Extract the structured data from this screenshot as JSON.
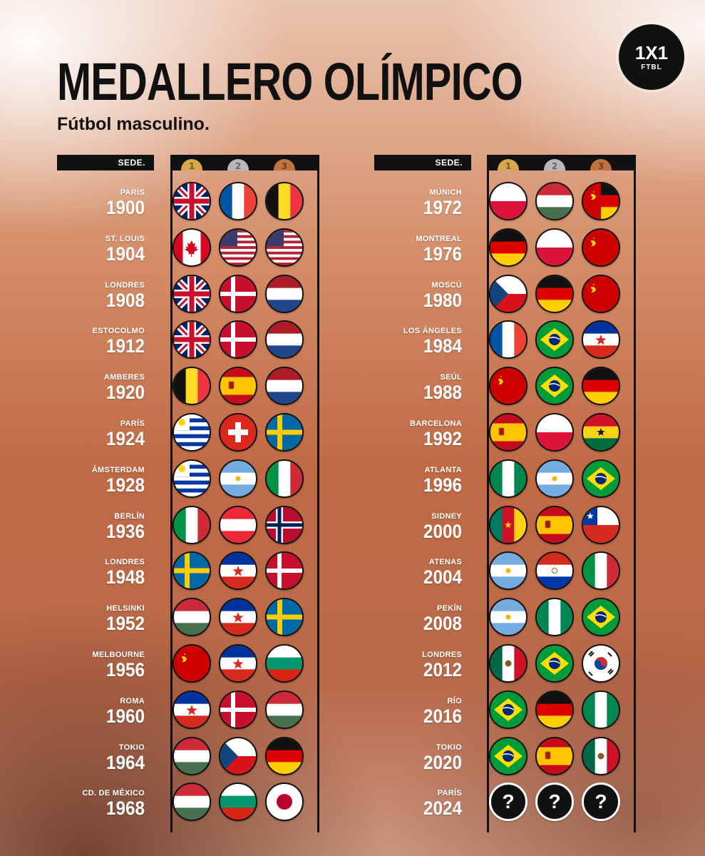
{
  "header": {
    "title": "MEDALLERO OLÍMPICO",
    "subtitle": "Fútbol masculino.",
    "logo_main": "1X1",
    "logo_sub": "FTBL"
  },
  "table": {
    "sede_label": "SEDE.",
    "medal_numbers": [
      "1",
      "2",
      "3"
    ],
    "columns": [
      {
        "rows": [
          {
            "city": "PARÍS",
            "year": "1900",
            "medals": [
              "uk",
              "france",
              "belgium"
            ]
          },
          {
            "city": "ST. LOUIS",
            "year": "1904",
            "medals": [
              "canada",
              "usa",
              "usa"
            ]
          },
          {
            "city": "LONDRES",
            "year": "1908",
            "medals": [
              "uk",
              "denmark",
              "netherlands"
            ]
          },
          {
            "city": "ESTOCOLMO",
            "year": "1912",
            "medals": [
              "uk",
              "denmark",
              "netherlands"
            ]
          },
          {
            "city": "AMBERES",
            "year": "1920",
            "medals": [
              "belgium",
              "spain",
              "netherlands"
            ]
          },
          {
            "city": "PARÍS",
            "year": "1924",
            "medals": [
              "uruguay",
              "switzerland",
              "sweden"
            ]
          },
          {
            "city": "ÁMSTERDAM",
            "year": "1928",
            "medals": [
              "uruguay",
              "argentina",
              "italy"
            ]
          },
          {
            "city": "BERLÍN",
            "year": "1936",
            "medals": [
              "italy",
              "austria",
              "norway"
            ]
          },
          {
            "city": "LONDRES",
            "year": "1948",
            "medals": [
              "sweden",
              "yugoslavia",
              "denmark"
            ]
          },
          {
            "city": "HELSINKI",
            "year": "1952",
            "medals": [
              "hungary",
              "yugoslavia",
              "sweden"
            ]
          },
          {
            "city": "MELBOURNE",
            "year": "1956",
            "medals": [
              "ussr",
              "yugoslavia",
              "bulgaria"
            ]
          },
          {
            "city": "ROMA",
            "year": "1960",
            "medals": [
              "yugoslavia",
              "denmark",
              "hungary"
            ]
          },
          {
            "city": "TOKIO",
            "year": "1964",
            "medals": [
              "hungary",
              "czechoslovakia",
              "germany"
            ]
          },
          {
            "city": "CD. DE MÉXICO",
            "year": "1968",
            "medals": [
              "hungary",
              "bulgaria",
              "japan"
            ]
          }
        ]
      },
      {
        "rows": [
          {
            "city": "MÚNICH",
            "year": "1972",
            "medals": [
              "poland",
              "hungary",
              "ussr_gdr"
            ]
          },
          {
            "city": "MONTREAL",
            "year": "1976",
            "medals": [
              "germany",
              "poland",
              "ussr"
            ]
          },
          {
            "city": "MOSCÚ",
            "year": "1980",
            "medals": [
              "czechoslovakia",
              "germany",
              "ussr"
            ]
          },
          {
            "city": "LOS ÁNGELES",
            "year": "1984",
            "medals": [
              "france",
              "brazil",
              "yugoslavia"
            ]
          },
          {
            "city": "SEÚL",
            "year": "1988",
            "medals": [
              "ussr",
              "brazil",
              "germany"
            ]
          },
          {
            "city": "BARCELONA",
            "year": "1992",
            "medals": [
              "spain",
              "poland",
              "ghana"
            ]
          },
          {
            "city": "ATLANTA",
            "year": "1996",
            "medals": [
              "nigeria",
              "argentina",
              "brazil"
            ]
          },
          {
            "city": "SIDNEY",
            "year": "2000",
            "medals": [
              "cameroon",
              "spain",
              "chile"
            ]
          },
          {
            "city": "ATENAS",
            "year": "2004",
            "medals": [
              "argentina",
              "paraguay",
              "italy"
            ]
          },
          {
            "city": "PEKÍN",
            "year": "2008",
            "medals": [
              "argentina",
              "nigeria",
              "brazil"
            ]
          },
          {
            "city": "LONDRES",
            "year": "2012",
            "medals": [
              "mexico",
              "brazil",
              "korea"
            ]
          },
          {
            "city": "RÍO",
            "year": "2016",
            "medals": [
              "brazil",
              "germany",
              "nigeria"
            ]
          },
          {
            "city": "TOKIO",
            "year": "2020",
            "medals": [
              "brazil",
              "spain",
              "mexico"
            ]
          },
          {
            "city": "PARÍS",
            "year": "2024",
            "medals": [
              "unknown",
              "unknown",
              "unknown"
            ]
          }
        ]
      }
    ],
    "unknown_symbol": "?"
  },
  "colors": {
    "background": "#c06a45",
    "ink": "#111111",
    "gold": "#d7a84a",
    "silver": "#b8b8b8",
    "bronze": "#c0733e"
  }
}
